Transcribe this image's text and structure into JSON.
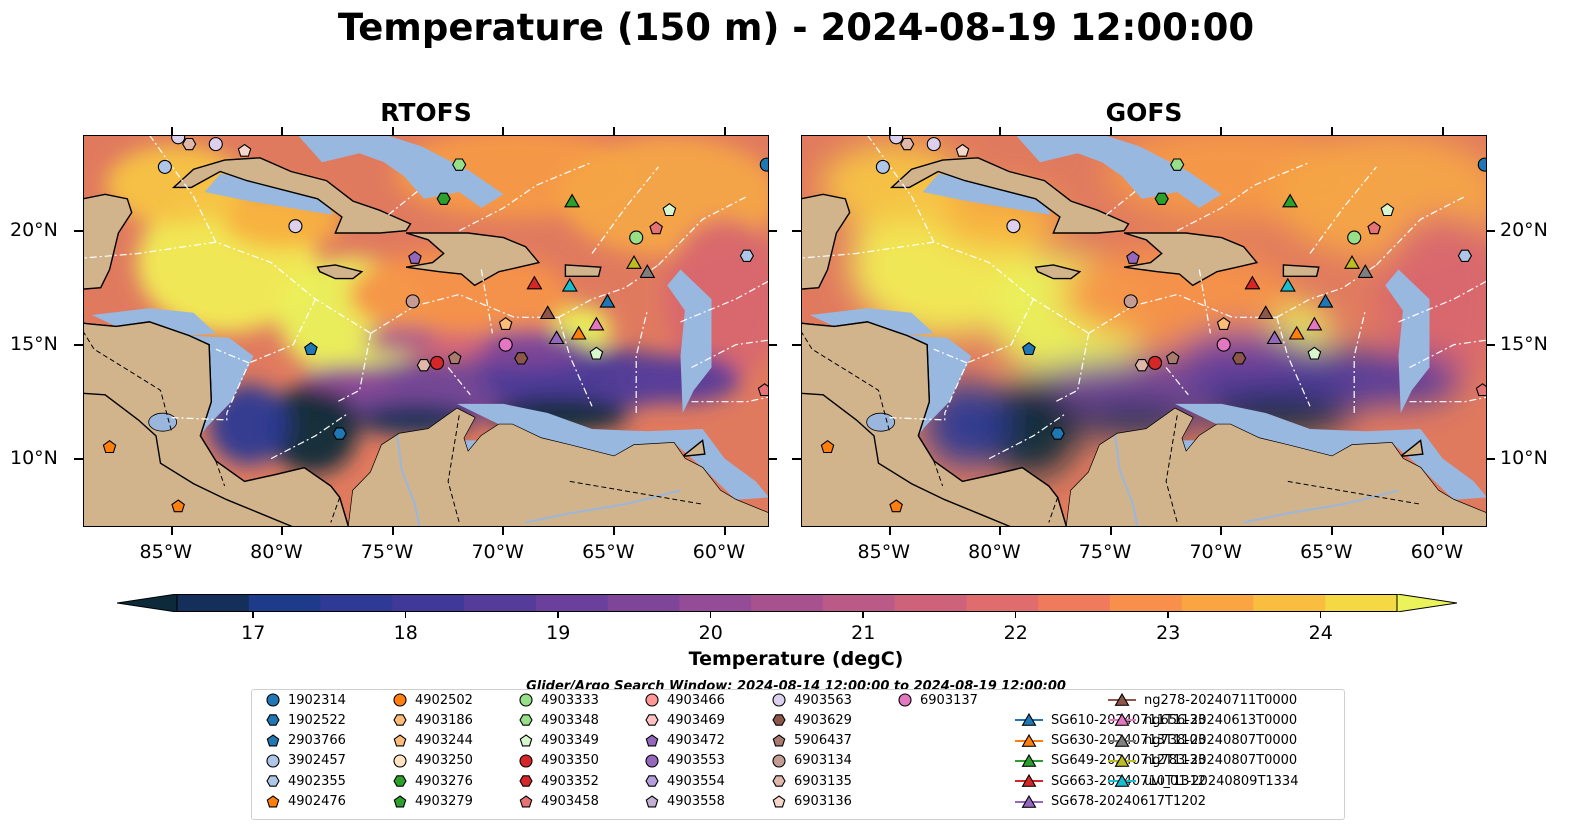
{
  "title": "Temperature (150 m) - 2024-08-19 12:00:00",
  "panels": [
    {
      "title": "RTOFS"
    },
    {
      "title": "GOFS"
    }
  ],
  "map": {
    "lon_range": [
      -89.0,
      -58.0
    ],
    "lat_range": [
      7.0,
      24.2
    ],
    "lon_ticks": [
      "85°W",
      "80°W",
      "75°W",
      "70°W",
      "65°W",
      "60°W"
    ],
    "lat_ticks": [
      "20°N",
      "15°N",
      "10°N"
    ],
    "colors": {
      "land": "#d2b48c",
      "ocean_shelf": "#99b8e0",
      "coast": "#000000"
    }
  },
  "colorbar": {
    "label": "Temperature (degC)",
    "min": 16.5,
    "max": 24.5,
    "step": 0.5,
    "ticks": [
      "17",
      "18",
      "19",
      "20",
      "21",
      "22",
      "23",
      "24"
    ],
    "tick_values": [
      17,
      18,
      19,
      20,
      21,
      22,
      23,
      24
    ],
    "colors": [
      "#0d2a3a",
      "#14305a",
      "#1e3a8a",
      "#2f3a96",
      "#41399a",
      "#553c9a",
      "#6a409c",
      "#7e4599",
      "#934c95",
      "#a7528f",
      "#bb5a86",
      "#cf627b",
      "#e16c6e",
      "#f07b5c",
      "#f88f4a",
      "#fba542",
      "#f9bd40",
      "#f4d944",
      "#ebf35a"
    ]
  },
  "search_window": "Glider/Argo Search Window: 2024-08-14 12:00:00 to 2024-08-19 12:00:00",
  "legend": [
    {
      "label": "1902314",
      "marker": "circle",
      "color": "#1f77b4"
    },
    {
      "label": "1902522",
      "marker": "hexagon",
      "color": "#1f77b4"
    },
    {
      "label": "2903766",
      "marker": "pentagon",
      "color": "#1f77b4"
    },
    {
      "label": "3902457",
      "marker": "circle",
      "color": "#aec7e8"
    },
    {
      "label": "4902355",
      "marker": "hexagon",
      "color": "#aec7e8"
    },
    {
      "label": "4902476",
      "marker": "pentagon",
      "color": "#ff7f0e"
    },
    {
      "label": "4902502",
      "marker": "circle",
      "color": "#ff7f0e"
    },
    {
      "label": "4903186",
      "marker": "hexagon",
      "color": "#ffbb78"
    },
    {
      "label": "4903244",
      "marker": "pentagon",
      "color": "#ffbb78"
    },
    {
      "label": "4903250",
      "marker": "circle",
      "color": "#ffe4c4"
    },
    {
      "label": "4903276",
      "marker": "hexagon",
      "color": "#2ca02c"
    },
    {
      "label": "4903279",
      "marker": "pentagon",
      "color": "#2ca02c"
    },
    {
      "label": "4903333",
      "marker": "circle",
      "color": "#98df8a"
    },
    {
      "label": "4903348",
      "marker": "hexagon",
      "color": "#98df8a"
    },
    {
      "label": "4903349",
      "marker": "pentagon",
      "color": "#d9f7cf"
    },
    {
      "label": "4903350",
      "marker": "circle",
      "color": "#d62728"
    },
    {
      "label": "4903352",
      "marker": "hexagon",
      "color": "#d62728"
    },
    {
      "label": "4903458",
      "marker": "pentagon",
      "color": "#e57373"
    },
    {
      "label": "4903466",
      "marker": "circle",
      "color": "#ff9896"
    },
    {
      "label": "4903469",
      "marker": "hexagon",
      "color": "#ffc2c0"
    },
    {
      "label": "4903472",
      "marker": "pentagon",
      "color": "#9467bd"
    },
    {
      "label": "4903553",
      "marker": "circle",
      "color": "#9467bd"
    },
    {
      "label": "4903554",
      "marker": "hexagon",
      "color": "#b39ddb"
    },
    {
      "label": "4903558",
      "marker": "pentagon",
      "color": "#c5b0d5"
    },
    {
      "label": "4903563",
      "marker": "circle",
      "color": "#dcd0ee"
    },
    {
      "label": "4903629",
      "marker": "hexagon",
      "color": "#8c564b"
    },
    {
      "label": "5906437",
      "marker": "pentagon",
      "color": "#a97b6f"
    },
    {
      "label": "6903134",
      "marker": "circle",
      "color": "#c49c94"
    },
    {
      "label": "6903135",
      "marker": "hexagon",
      "color": "#e0b8aa"
    },
    {
      "label": "6903136",
      "marker": "pentagon",
      "color": "#f5d6cb"
    },
    {
      "label": "6903137",
      "marker": "circle",
      "color": "#e377c2"
    },
    {
      "label": "SG610-20240711T1133",
      "marker": "triangle",
      "color": "#1f77b4"
    },
    {
      "label": "SG630-20240713T1103",
      "marker": "triangle",
      "color": "#ff7f0e"
    },
    {
      "label": "SG649-20240712T1133",
      "marker": "triangle",
      "color": "#2ca02c"
    },
    {
      "label": "SG663-20240710T1312",
      "marker": "triangle",
      "color": "#d62728"
    },
    {
      "label": "SG678-20240617T1202",
      "marker": "triangle",
      "color": "#9467bd"
    },
    {
      "label": "ng278-20240711T0000",
      "marker": "triangle",
      "color": "#8c564b"
    },
    {
      "label": "ng656-20240613T0000",
      "marker": "triangle",
      "color": "#e377c2"
    },
    {
      "label": "ng738-20240807T0000",
      "marker": "triangle",
      "color": "#7f7f7f"
    },
    {
      "label": "ng783-20240807T0000",
      "marker": "triangle",
      "color": "#bcbd22"
    },
    {
      "label": "uvi_01-20240809T1334",
      "marker": "triangle",
      "color": "#17becf"
    }
  ],
  "observations": [
    {
      "label": "3902457",
      "lon": -85.3,
      "lat": 22.8
    },
    {
      "label": "4903563",
      "lon": -84.7,
      "lat": 24.1
    },
    {
      "label": "6903135",
      "lon": -84.2,
      "lat": 23.8
    },
    {
      "label": "4903563",
      "lon": -83.0,
      "lat": 23.8
    },
    {
      "label": "6903136",
      "lon": -81.7,
      "lat": 23.5
    },
    {
      "label": "4903563",
      "lon": -79.4,
      "lat": 20.2
    },
    {
      "label": "2903766",
      "lon": -78.7,
      "lat": 14.8
    },
    {
      "label": "4903348",
      "lon": -72.0,
      "lat": 22.9
    },
    {
      "label": "4903276",
      "lon": -72.7,
      "lat": 21.4
    },
    {
      "label": "SG649-20240712T1133",
      "lon": -66.9,
      "lat": 21.3
    },
    {
      "label": "4903349",
      "lon": -62.5,
      "lat": 20.9
    },
    {
      "label": "4903458",
      "lon": -63.1,
      "lat": 20.1
    },
    {
      "label": "4903333",
      "lon": -64.0,
      "lat": 19.7
    },
    {
      "label": "4903472",
      "lon": -74.0,
      "lat": 18.8
    },
    {
      "label": "4902355",
      "lon": -59.0,
      "lat": 18.9
    },
    {
      "label": "6903134",
      "lon": -74.1,
      "lat": 16.9
    },
    {
      "label": "4903244",
      "lon": -69.9,
      "lat": 15.9
    },
    {
      "label": "6903137",
      "lon": -69.9,
      "lat": 15.0
    },
    {
      "label": "4903629",
      "lon": -69.2,
      "lat": 14.4
    },
    {
      "label": "4903350",
      "lon": -73.0,
      "lat": 14.2
    },
    {
      "label": "6903135",
      "lon": -73.6,
      "lat": 14.1
    },
    {
      "label": "5906437",
      "lon": -72.2,
      "lat": 14.4
    },
    {
      "label": "SG663-20240710T1312",
      "lon": -68.6,
      "lat": 17.7
    },
    {
      "label": "uvi_01-20240809T1334",
      "lon": -67.0,
      "lat": 17.6
    },
    {
      "label": "ng783-20240807T0000",
      "lon": -64.1,
      "lat": 18.6
    },
    {
      "label": "ng738-20240807T0000",
      "lon": -63.5,
      "lat": 18.2
    },
    {
      "label": "SG610-20240711T1133",
      "lon": -65.3,
      "lat": 16.9
    },
    {
      "label": "ng278-20240711T0000",
      "lon": -68.0,
      "lat": 16.4
    },
    {
      "label": "ng656-20240613T0000",
      "lon": -65.8,
      "lat": 15.9
    },
    {
      "label": "SG630-20240713T1103",
      "lon": -66.6,
      "lat": 15.5
    },
    {
      "label": "SG678-20240617T1202",
      "lon": -67.6,
      "lat": 15.3
    },
    {
      "label": "4903349",
      "lon": -65.8,
      "lat": 14.6
    },
    {
      "label": "4903458",
      "lon": -58.2,
      "lat": 13.0
    },
    {
      "label": "1902522",
      "lon": -77.4,
      "lat": 11.1
    },
    {
      "label": "4902476",
      "lon": -87.8,
      "lat": 10.5
    },
    {
      "label": "4902476",
      "lon": -84.7,
      "lat": 7.9
    },
    {
      "label": "1902314",
      "lon": -58.1,
      "lat": 22.9
    }
  ]
}
